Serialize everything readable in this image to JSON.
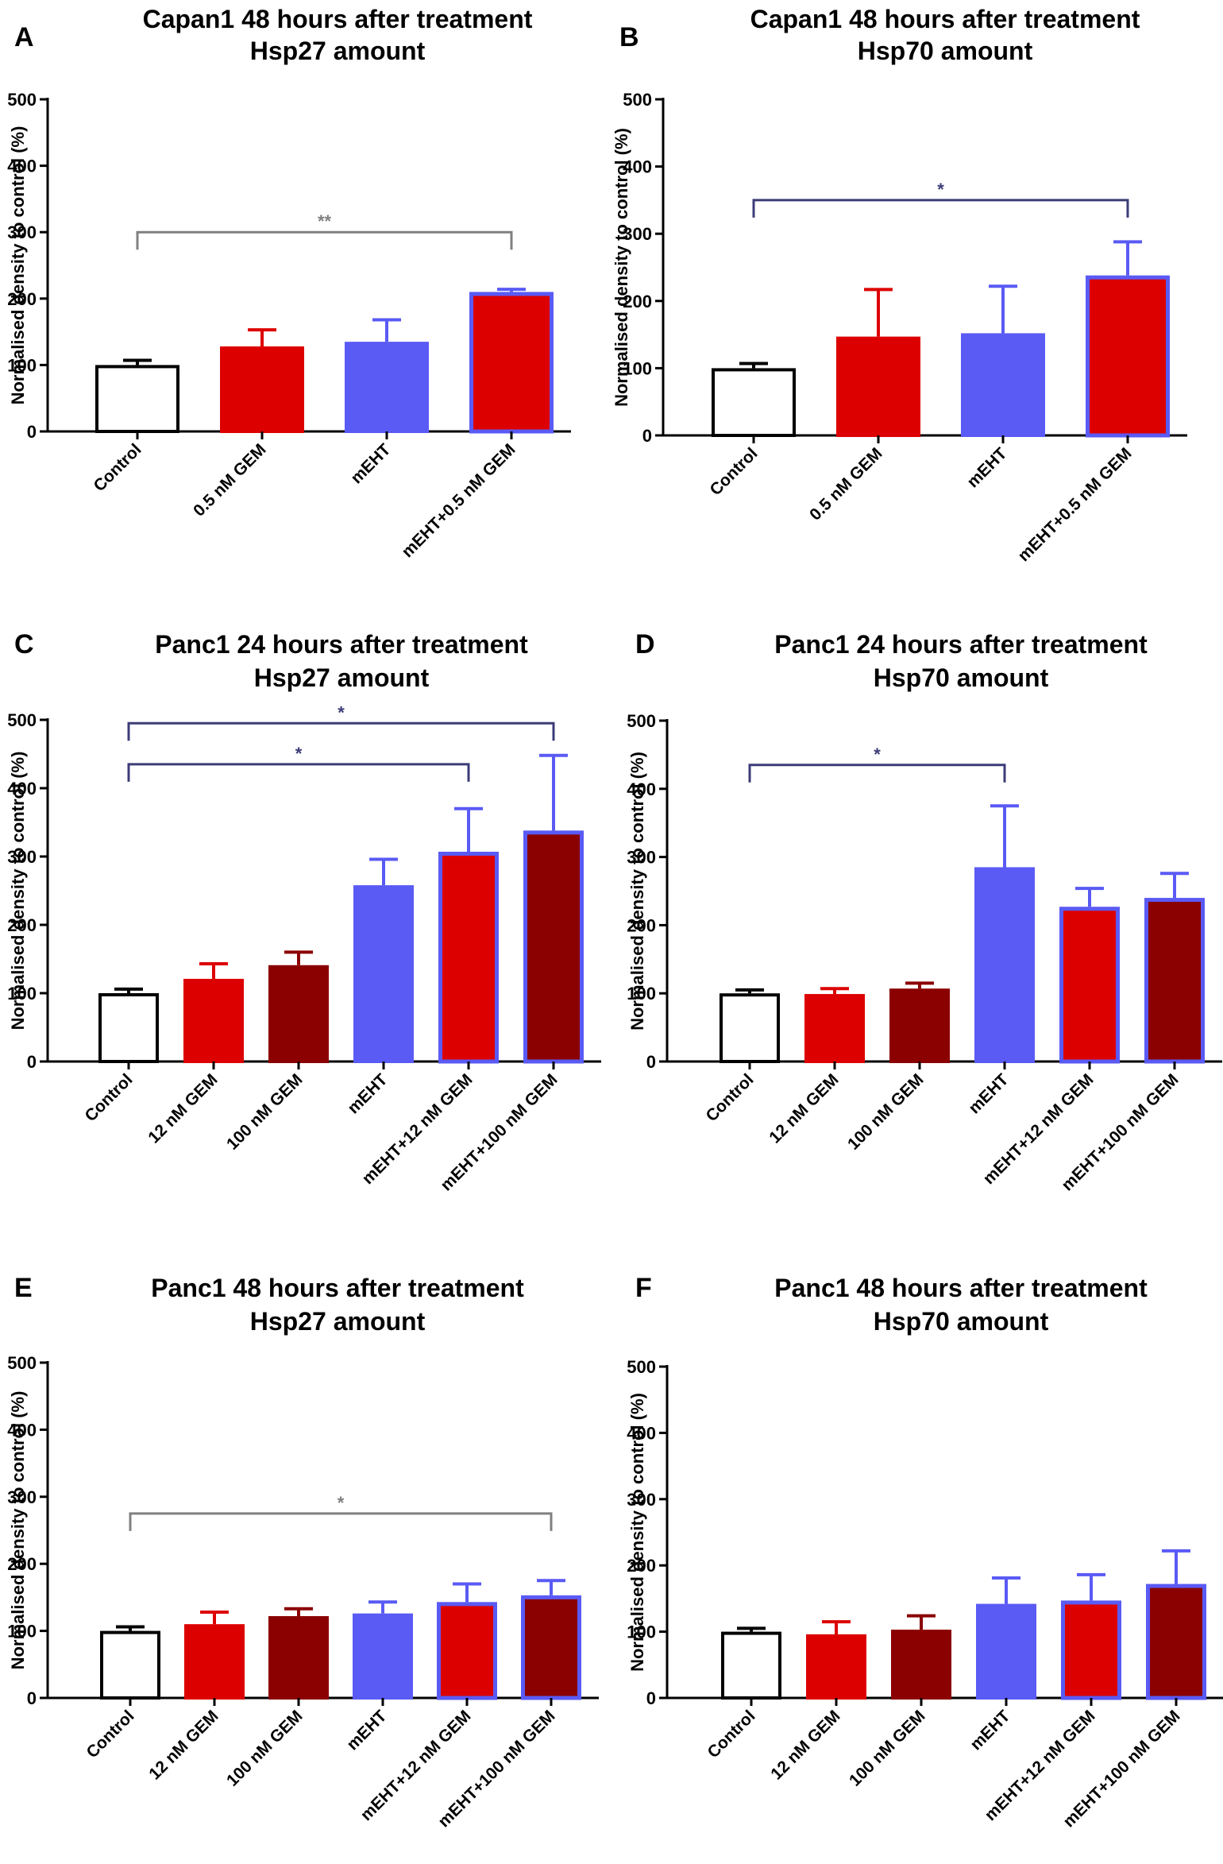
{
  "figure": {
    "colors": {
      "control_fill": "#ffffff",
      "red": "#dd0000",
      "dark_red": "#8b0000",
      "blue": "#5a5af5",
      "blue_outline": "#5a5af5",
      "axis": "#000000",
      "bracket_gray": "#808080",
      "bracket_navy": "#3c3c78"
    }
  },
  "chart_data": [
    {
      "panel": "A",
      "type": "bar",
      "title": [
        "Capan1 48 hours after treatment",
        "Hsp27 amount"
      ],
      "ylabel": "Normalised density to control (%)",
      "ylim": [
        0,
        500
      ],
      "yticks": [
        0,
        100,
        200,
        300,
        400,
        500
      ],
      "categories": [
        "Control",
        "0.5 nM GEM",
        "mEHT",
        "mEHT+0.5 nM GEM"
      ],
      "values": [
        100,
        128,
        135,
        210
      ],
      "errors": [
        7,
        25,
        33,
        4
      ],
      "bar_styles": [
        "control",
        "red",
        "blue",
        "red_blue_outline"
      ],
      "significance": [
        {
          "from": 0,
          "to": 3,
          "level": 300,
          "label": "**",
          "color": "gray"
        }
      ]
    },
    {
      "panel": "B",
      "type": "bar",
      "title": [
        "Capan1 48 hours after treatment",
        "Hsp70 amount"
      ],
      "ylabel": "Normalised density to control (%)",
      "ylim": [
        0,
        500
      ],
      "yticks": [
        0,
        100,
        200,
        300,
        400,
        500
      ],
      "categories": [
        "Control",
        "0.5 nM GEM",
        "mEHT",
        "mEHT+0.5 nM GEM"
      ],
      "values": [
        100,
        147,
        152,
        238
      ],
      "errors": [
        7,
        70,
        70,
        50
      ],
      "bar_styles": [
        "control",
        "red",
        "blue",
        "red_blue_outline"
      ],
      "significance": [
        {
          "from": 0,
          "to": 3,
          "level": 350,
          "label": "*",
          "color": "navy"
        }
      ]
    },
    {
      "panel": "C",
      "type": "bar",
      "title": [
        "Panc1 24 hours after treatment",
        "Hsp27 amount"
      ],
      "ylabel": "Normalised density to control (%)",
      "ylim": [
        0,
        500
      ],
      "yticks": [
        0,
        100,
        200,
        300,
        400,
        500
      ],
      "categories": [
        "Control",
        "12 nM GEM",
        "100 nM GEM",
        "mEHT",
        "mEHT+12 nM GEM",
        "mEHT+100 nM GEM"
      ],
      "values": [
        100,
        121,
        141,
        258,
        307,
        338
      ],
      "errors": [
        6,
        22,
        19,
        38,
        63,
        110
      ],
      "bar_styles": [
        "control",
        "red",
        "dark_red",
        "blue",
        "red_blue_outline",
        "dark_red_blue_outline"
      ],
      "significance": [
        {
          "from": 0,
          "to": 4,
          "level": 435,
          "label": "*",
          "color": "navy"
        },
        {
          "from": 0,
          "to": 5,
          "level": 495,
          "label": "*",
          "color": "navy"
        }
      ]
    },
    {
      "panel": "D",
      "type": "bar",
      "title": [
        "Panc1 24 hours after treatment",
        "Hsp70 amount"
      ],
      "ylabel": "Normalised density to control (%)",
      "ylim": [
        0,
        500
      ],
      "yticks": [
        0,
        100,
        200,
        300,
        400,
        500
      ],
      "categories": [
        "Control",
        "12 nM GEM",
        "100 nM GEM",
        "mEHT",
        "mEHT+12 nM GEM",
        "mEHT+100 nM GEM"
      ],
      "values": [
        100,
        99,
        107,
        285,
        227,
        240
      ],
      "errors": [
        5,
        8,
        8,
        90,
        27,
        36
      ],
      "bar_styles": [
        "control",
        "red",
        "dark_red",
        "blue",
        "red_blue_outline",
        "dark_red_blue_outline"
      ],
      "significance": [
        {
          "from": 0,
          "to": 3,
          "level": 435,
          "label": "*",
          "color": "navy"
        }
      ]
    },
    {
      "panel": "E",
      "type": "bar",
      "title": [
        "Panc1 48 hours after treatment",
        "Hsp27 amount"
      ],
      "ylabel": "Normalised density to control (%)",
      "ylim": [
        0,
        500
      ],
      "yticks": [
        0,
        100,
        200,
        300,
        400,
        500
      ],
      "categories": [
        "Control",
        "12 nM GEM",
        "100 nM GEM",
        "mEHT",
        "mEHT+12 nM GEM",
        "mEHT+100 nM GEM"
      ],
      "values": [
        100,
        110,
        122,
        126,
        143,
        153
      ],
      "errors": [
        6,
        18,
        11,
        17,
        27,
        22
      ],
      "bar_styles": [
        "control",
        "red",
        "dark_red",
        "blue",
        "red_blue_outline",
        "dark_red_blue_outline"
      ],
      "significance": [
        {
          "from": 0,
          "to": 5,
          "level": 275,
          "label": "*",
          "color": "gray"
        }
      ]
    },
    {
      "panel": "F",
      "type": "bar",
      "title": [
        "Panc1 48 hours after treatment",
        "Hsp70 amount"
      ],
      "ylabel": "Normalised density to control (%)",
      "ylim": [
        0,
        500
      ],
      "yticks": [
        0,
        100,
        200,
        300,
        400,
        500
      ],
      "categories": [
        "Control",
        "12 nM GEM",
        "100 nM GEM",
        "mEHT",
        "mEHT+12 nM GEM",
        "mEHT+100 nM GEM"
      ],
      "values": [
        100,
        96,
        103,
        142,
        147,
        172
      ],
      "errors": [
        5,
        19,
        21,
        39,
        39,
        50
      ],
      "bar_styles": [
        "control",
        "red",
        "dark_red",
        "blue",
        "red_blue_outline",
        "dark_red_blue_outline"
      ],
      "significance": []
    }
  ]
}
